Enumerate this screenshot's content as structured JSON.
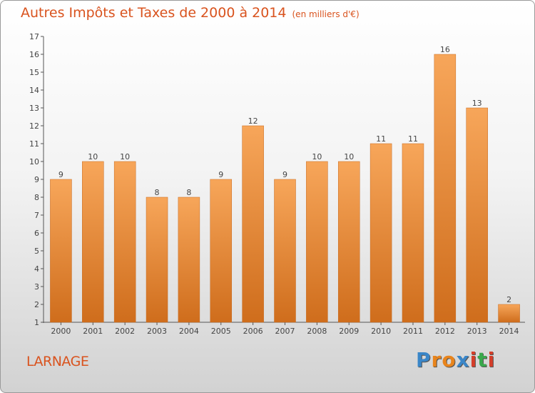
{
  "title": "Autres Impôts et Taxes de 2000 à 2014",
  "subtitle": "(en milliers d'€)",
  "place": "LARNAGE",
  "brand": {
    "letters": [
      "P",
      "r",
      "o",
      "x",
      "i",
      "t",
      "i"
    ],
    "colors": [
      "#3a86c8",
      "#e8841c",
      "#e8841c",
      "#3a86c8",
      "#d43e2a",
      "#3aa84c",
      "#d43e2a"
    ]
  },
  "colors": {
    "bar_top": "#f7a65a",
    "bar_bottom": "#cf6d1c",
    "text_accent": "#d9531e"
  },
  "chart_data": {
    "type": "bar",
    "title": "Autres Impôts et Taxes de 2000 à 2014",
    "subtitle": "(en milliers d'€)",
    "categories": [
      "2000",
      "2001",
      "2002",
      "2003",
      "2004",
      "2005",
      "2006",
      "2007",
      "2008",
      "2009",
      "2010",
      "2011",
      "2012",
      "2013",
      "2014"
    ],
    "values": [
      9,
      10,
      10,
      8,
      8,
      9,
      12,
      9,
      10,
      10,
      11,
      11,
      16,
      13,
      2
    ],
    "ylim": [
      1,
      17
    ],
    "yticks": [
      1,
      2,
      3,
      4,
      5,
      6,
      7,
      8,
      9,
      10,
      11,
      12,
      13,
      14,
      15,
      16,
      17
    ],
    "grid": false,
    "xlabel": "",
    "ylabel": ""
  }
}
